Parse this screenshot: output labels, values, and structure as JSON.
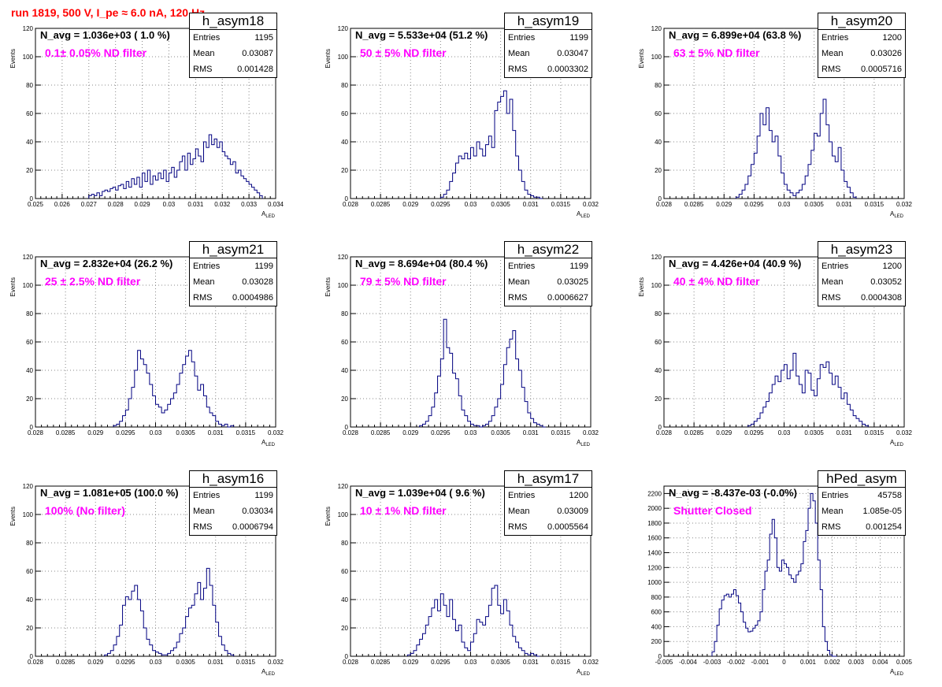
{
  "page_title": "run 1819,   500 V, I_pe ≈ 6.0 nA, 120 Hz",
  "chart_data": [
    {
      "type": "histogram",
      "name": "h_asym18",
      "n_avg": "N_avg = 1.036e+03 ( 1.0 %)",
      "filter": "0.1± 0.05% ND filter",
      "stats": {
        "entries": "1195",
        "mean": "0.03087",
        "rms": "0.001428"
      },
      "xlim": [
        0.025,
        0.034
      ],
      "ylim": [
        0,
        120
      ],
      "xticks": [
        "0.025",
        "0.026",
        "0.027",
        "0.028",
        "0.029",
        "0.03",
        "0.031",
        "0.032",
        "0.033",
        "0.034"
      ],
      "yticks": [
        "0",
        "20",
        "40",
        "60",
        "80",
        "100",
        "120"
      ],
      "xlabel": "A_LED",
      "ylabel": "Events",
      "bins": [
        0.027,
        0.0271,
        0.0272,
        0.0273,
        0.0274,
        0.0275,
        0.0276,
        0.0277,
        0.0278,
        0.0279,
        0.028,
        0.0281,
        0.0282,
        0.0283,
        0.0284,
        0.0285,
        0.0286,
        0.0287,
        0.0288,
        0.0289,
        0.029,
        0.0291,
        0.0292,
        0.0293,
        0.0294,
        0.0295,
        0.0296,
        0.0297,
        0.0298,
        0.0299,
        0.03,
        0.0301,
        0.0302,
        0.0303,
        0.0304,
        0.0305,
        0.0306,
        0.0307,
        0.0308,
        0.0309,
        0.031,
        0.0311,
        0.0312,
        0.0313,
        0.0314,
        0.0315,
        0.0316,
        0.0317,
        0.0318,
        0.0319,
        0.032,
        0.0321,
        0.0322,
        0.0323,
        0.0324,
        0.0325,
        0.0326,
        0.0327,
        0.0328,
        0.0329,
        0.033,
        0.0331,
        0.0332,
        0.0333,
        0.0334
      ],
      "values": [
        2,
        3,
        2,
        4,
        2,
        5,
        6,
        5,
        7,
        8,
        6,
        9,
        10,
        7,
        12,
        8,
        14,
        10,
        15,
        8,
        18,
        12,
        20,
        10,
        16,
        13,
        18,
        14,
        20,
        12,
        18,
        22,
        15,
        20,
        26,
        30,
        20,
        32,
        24,
        28,
        35,
        30,
        26,
        40,
        36,
        45,
        38,
        42,
        36,
        40,
        33,
        30,
        28,
        24,
        26,
        18,
        20,
        16,
        14,
        12,
        10,
        8,
        6,
        4,
        2
      ],
      "binw": 0.0001
    },
    {
      "type": "histogram",
      "name": "h_asym19",
      "n_avg": "N_avg = 5.533e+04 (51.2 %)",
      "filter": "50 ± 5% ND filter",
      "stats": {
        "entries": "1199",
        "mean": "0.03047",
        "rms": "0.0003302"
      },
      "xlim": [
        0.028,
        0.032
      ],
      "ylim": [
        0,
        120
      ],
      "xticks": [
        "0.028",
        "0.0285",
        "0.029",
        "0.0295",
        "0.03",
        "0.0305",
        "0.031",
        "0.0315",
        "0.032"
      ],
      "yticks": [
        "0",
        "20",
        "40",
        "60",
        "80",
        "100",
        "120"
      ],
      "xlabel": "A_LED",
      "ylabel": "Events",
      "bins": [
        0.0295,
        0.02955,
        0.0296,
        0.02965,
        0.0297,
        0.02975,
        0.0298,
        0.02985,
        0.0299,
        0.02995,
        0.03,
        0.03005,
        0.0301,
        0.03015,
        0.0302,
        0.03025,
        0.0303,
        0.03035,
        0.0304,
        0.03045,
        0.0305,
        0.03055,
        0.0306,
        0.03065,
        0.0307,
        0.03075,
        0.0308,
        0.03085,
        0.0309,
        0.03095,
        0.031,
        0.03105,
        0.0311,
        0.03115
      ],
      "values": [
        1,
        3,
        6,
        12,
        18,
        25,
        30,
        28,
        32,
        28,
        36,
        30,
        40,
        35,
        30,
        38,
        44,
        36,
        62,
        68,
        72,
        76,
        60,
        70,
        48,
        30,
        20,
        12,
        6,
        3,
        2,
        1,
        1,
        0
      ],
      "binw": 5e-05
    },
    {
      "type": "histogram",
      "name": "h_asym20",
      "n_avg": "N_avg = 6.899e+04 (63.8 %)",
      "filter": "63 ± 5% ND filter",
      "stats": {
        "entries": "1200",
        "mean": "0.03026",
        "rms": "0.0005716"
      },
      "xlim": [
        0.028,
        0.032
      ],
      "ylim": [
        0,
        120
      ],
      "xticks": [
        "0.028",
        "0.0285",
        "0.029",
        "0.0295",
        "0.03",
        "0.0305",
        "0.031",
        "0.0315",
        "0.032"
      ],
      "yticks": [
        "0",
        "20",
        "40",
        "60",
        "80",
        "100",
        "120"
      ],
      "xlabel": "A_LED",
      "ylabel": "Events",
      "bins": [
        0.0292,
        0.02925,
        0.0293,
        0.02935,
        0.0294,
        0.02945,
        0.0295,
        0.02955,
        0.0296,
        0.02965,
        0.0297,
        0.02975,
        0.0298,
        0.02985,
        0.0299,
        0.02995,
        0.03,
        0.03005,
        0.0301,
        0.03015,
        0.0302,
        0.03025,
        0.0303,
        0.03035,
        0.0304,
        0.03045,
        0.0305,
        0.03055,
        0.0306,
        0.03065,
        0.0307,
        0.03075,
        0.0308,
        0.03085,
        0.0309,
        0.03095,
        0.031,
        0.03105,
        0.0311,
        0.03115
      ],
      "values": [
        1,
        3,
        6,
        10,
        16,
        24,
        32,
        44,
        60,
        52,
        64,
        48,
        40,
        44,
        30,
        18,
        10,
        6,
        4,
        2,
        4,
        6,
        10,
        16,
        24,
        34,
        46,
        44,
        60,
        70,
        52,
        40,
        30,
        26,
        36,
        20,
        12,
        8,
        4,
        1
      ],
      "binw": 5e-05
    },
    {
      "type": "histogram",
      "name": "h_asym21",
      "n_avg": "N_avg = 2.832e+04 (26.2 %)",
      "filter": "25 ± 2.5% ND filter",
      "stats": {
        "entries": "1199",
        "mean": "0.03028",
        "rms": "0.0004986"
      },
      "xlim": [
        0.028,
        0.032
      ],
      "ylim": [
        0,
        120
      ],
      "xticks": [
        "0.028",
        "0.0285",
        "0.029",
        "0.0295",
        "0.03",
        "0.0305",
        "0.031",
        "0.0315",
        "0.032"
      ],
      "yticks": [
        "0",
        "20",
        "40",
        "60",
        "80",
        "100",
        "120"
      ],
      "xlabel": "A_LED",
      "ylabel": "Events",
      "bins": [
        0.0293,
        0.02935,
        0.0294,
        0.02945,
        0.0295,
        0.02955,
        0.0296,
        0.02965,
        0.0297,
        0.02975,
        0.0298,
        0.02985,
        0.0299,
        0.02995,
        0.03,
        0.03005,
        0.0301,
        0.03015,
        0.0302,
        0.03025,
        0.0303,
        0.03035,
        0.0304,
        0.03045,
        0.0305,
        0.03055,
        0.0306,
        0.03065,
        0.0307,
        0.03075,
        0.0308,
        0.03085,
        0.0309,
        0.03095,
        0.031,
        0.03105,
        0.0311,
        0.03115,
        0.0312,
        0.03125
      ],
      "values": [
        1,
        2,
        4,
        8,
        12,
        20,
        28,
        40,
        54,
        48,
        44,
        38,
        30,
        22,
        16,
        14,
        10,
        12,
        16,
        20,
        24,
        30,
        38,
        44,
        50,
        54,
        46,
        36,
        26,
        30,
        22,
        14,
        10,
        8,
        4,
        2,
        1,
        2,
        0,
        1
      ],
      "binw": 5e-05
    },
    {
      "type": "histogram",
      "name": "h_asym22",
      "n_avg": "N_avg = 8.694e+04 (80.4 %)",
      "filter": "79 ± 5% ND filter",
      "stats": {
        "entries": "1199",
        "mean": "0.03025",
        "rms": "0.0006627"
      },
      "xlim": [
        0.028,
        0.032
      ],
      "ylim": [
        0,
        120
      ],
      "xticks": [
        "0.028",
        "0.0285",
        "0.029",
        "0.0295",
        "0.03",
        "0.0305",
        "0.031",
        "0.0315",
        "0.032"
      ],
      "yticks": [
        "0",
        "20",
        "40",
        "60",
        "80",
        "100",
        "120"
      ],
      "xlabel": "A_LED",
      "ylabel": "Events",
      "bins": [
        0.02915,
        0.0292,
        0.02925,
        0.0293,
        0.02935,
        0.0294,
        0.02945,
        0.0295,
        0.02955,
        0.0296,
        0.02965,
        0.0297,
        0.02975,
        0.0298,
        0.02985,
        0.0299,
        0.02995,
        0.03,
        0.03005,
        0.0301,
        0.03015,
        0.0302,
        0.03025,
        0.0303,
        0.03035,
        0.0304,
        0.03045,
        0.0305,
        0.03055,
        0.0306,
        0.03065,
        0.0307,
        0.03075,
        0.0308,
        0.03085,
        0.0309,
        0.03095,
        0.031,
        0.03105,
        0.0311,
        0.03115,
        0.0312
      ],
      "values": [
        1,
        2,
        4,
        8,
        14,
        24,
        36,
        48,
        76,
        56,
        52,
        38,
        34,
        22,
        12,
        8,
        4,
        2,
        1,
        1,
        0,
        1,
        2,
        4,
        8,
        14,
        20,
        30,
        44,
        56,
        62,
        68,
        48,
        40,
        28,
        18,
        10,
        6,
        3,
        2,
        1,
        0
      ],
      "binw": 5e-05
    },
    {
      "type": "histogram",
      "name": "h_asym23",
      "n_avg": "N_avg = 4.426e+04 (40.9 %)",
      "filter": "40 ± 4% ND filter",
      "stats": {
        "entries": "1200",
        "mean": "0.03052",
        "rms": "0.0004308"
      },
      "xlim": [
        0.028,
        0.032
      ],
      "ylim": [
        0,
        120
      ],
      "xticks": [
        "0.028",
        "0.0285",
        "0.029",
        "0.0295",
        "0.03",
        "0.0305",
        "0.031",
        "0.0315",
        "0.032"
      ],
      "yticks": [
        "0",
        "20",
        "40",
        "60",
        "80",
        "100",
        "120"
      ],
      "xlabel": "A_LED",
      "ylabel": "Events",
      "bins": [
        0.0294,
        0.02945,
        0.0295,
        0.02955,
        0.0296,
        0.02965,
        0.0297,
        0.02975,
        0.0298,
        0.02985,
        0.0299,
        0.02995,
        0.03,
        0.03005,
        0.0301,
        0.03015,
        0.0302,
        0.03025,
        0.0303,
        0.03035,
        0.0304,
        0.03045,
        0.0305,
        0.03055,
        0.0306,
        0.03065,
        0.0307,
        0.03075,
        0.0308,
        0.03085,
        0.0309,
        0.03095,
        0.031,
        0.03105,
        0.0311,
        0.03115,
        0.0312,
        0.03125,
        0.0313,
        0.03135
      ],
      "values": [
        1,
        2,
        4,
        6,
        10,
        14,
        18,
        24,
        30,
        36,
        32,
        40,
        44,
        34,
        40,
        52,
        36,
        30,
        24,
        40,
        38,
        26,
        22,
        34,
        44,
        42,
        46,
        38,
        30,
        36,
        28,
        20,
        24,
        16,
        12,
        8,
        6,
        4,
        2,
        1
      ],
      "binw": 5e-05
    },
    {
      "type": "histogram",
      "name": "h_asym16",
      "n_avg": "N_avg = 1.081e+05 (100.0 %)",
      "filter": "100% (No filter)",
      "stats": {
        "entries": "1199",
        "mean": "0.03034",
        "rms": "0.0006794"
      },
      "xlim": [
        0.028,
        0.032
      ],
      "ylim": [
        0,
        120
      ],
      "xticks": [
        "0.028",
        "0.0285",
        "0.029",
        "0.0295",
        "0.03",
        "0.0305",
        "0.031",
        "0.0315",
        "0.032"
      ],
      "yticks": [
        "0",
        "20",
        "40",
        "60",
        "80",
        "100",
        "120"
      ],
      "xlabel": "A_LED",
      "ylabel": "Events",
      "bins": [
        0.02915,
        0.0292,
        0.02925,
        0.0293,
        0.02935,
        0.0294,
        0.02945,
        0.0295,
        0.02955,
        0.0296,
        0.02965,
        0.0297,
        0.02975,
        0.0298,
        0.02985,
        0.0299,
        0.02995,
        0.03,
        0.03005,
        0.0301,
        0.03015,
        0.0302,
        0.03025,
        0.0303,
        0.03035,
        0.0304,
        0.03045,
        0.0305,
        0.03055,
        0.0306,
        0.03065,
        0.0307,
        0.03075,
        0.0308,
        0.03085,
        0.0309,
        0.03095,
        0.031,
        0.03105,
        0.0311,
        0.03115,
        0.0312,
        0.03125
      ],
      "values": [
        1,
        2,
        4,
        8,
        14,
        22,
        36,
        42,
        40,
        46,
        50,
        40,
        32,
        20,
        12,
        8,
        4,
        3,
        2,
        1,
        1,
        2,
        4,
        6,
        10,
        16,
        20,
        28,
        34,
        36,
        44,
        52,
        40,
        48,
        62,
        50,
        36,
        24,
        14,
        8,
        4,
        2,
        1
      ],
      "binw": 5e-05
    },
    {
      "type": "histogram",
      "name": "h_asym17",
      "n_avg": "N_avg = 1.039e+04 ( 9.6 %)",
      "filter": "10 ± 1% ND filter",
      "stats": {
        "entries": "1200",
        "mean": "0.03009",
        "rms": "0.0005564"
      },
      "xlim": [
        0.028,
        0.032
      ],
      "ylim": [
        0,
        120
      ],
      "xticks": [
        "0.028",
        "0.0285",
        "0.029",
        "0.0295",
        "0.03",
        "0.0305",
        "0.031",
        "0.0315",
        "0.032"
      ],
      "yticks": [
        "0",
        "20",
        "40",
        "60",
        "80",
        "100",
        "120"
      ],
      "xlabel": "A_LED",
      "ylabel": "Events",
      "bins": [
        0.02895,
        0.029,
        0.02905,
        0.0291,
        0.02915,
        0.0292,
        0.02925,
        0.0293,
        0.02935,
        0.0294,
        0.02945,
        0.0295,
        0.02955,
        0.0296,
        0.02965,
        0.0297,
        0.02975,
        0.0298,
        0.02985,
        0.0299,
        0.02995,
        0.03,
        0.03005,
        0.0301,
        0.03015,
        0.0302,
        0.03025,
        0.0303,
        0.03035,
        0.0304,
        0.03045,
        0.0305,
        0.03055,
        0.0306,
        0.03065,
        0.0307,
        0.03075,
        0.0308,
        0.03085,
        0.0309,
        0.03095,
        0.031,
        0.03105,
        0.0311
      ],
      "values": [
        1,
        2,
        4,
        8,
        12,
        16,
        22,
        28,
        34,
        40,
        32,
        44,
        36,
        28,
        40,
        26,
        18,
        22,
        10,
        6,
        4,
        10,
        16,
        26,
        24,
        22,
        28,
        36,
        48,
        50,
        36,
        30,
        40,
        32,
        22,
        14,
        10,
        6,
        4,
        2,
        1,
        2,
        1,
        0
      ],
      "binw": 5e-05
    },
    {
      "type": "histogram",
      "name": "hPed_asym",
      "n_avg": "N_avg = -8.437e-03 (-0.0%)",
      "filter": "Shutter Closed",
      "stats": {
        "entries": "45758",
        "mean": "1.085e-05",
        "rms": "0.001254"
      },
      "xlim": [
        -0.005,
        0.005
      ],
      "ylim": [
        0,
        2300
      ],
      "xticks": [
        "-0.005",
        "-0.004",
        "-0.003",
        "-0.002",
        "-0.001",
        "0",
        "0.001",
        "0.002",
        "0.003",
        "0.004",
        "0.005"
      ],
      "yticks": [
        "0",
        "200",
        "400",
        "600",
        "800",
        "1000",
        "1200",
        "1400",
        "1600",
        "1800",
        "2000",
        "2200"
      ],
      "xlabel": "A_LED",
      "ylabel": "",
      "bins": [
        -0.003,
        -0.0029,
        -0.0028,
        -0.0027,
        -0.0026,
        -0.0025,
        -0.0024,
        -0.0023,
        -0.0022,
        -0.0021,
        -0.002,
        -0.0019,
        -0.0018,
        -0.0017,
        -0.0016,
        -0.0015,
        -0.0014,
        -0.0013,
        -0.0012,
        -0.0011,
        -0.001,
        -0.0009,
        -0.0008,
        -0.0007,
        -0.0006,
        -0.0005,
        -0.0004,
        -0.0003,
        -0.0002,
        -0.0001,
        0.0,
        0.0001,
        0.0002,
        0.0003,
        0.0004,
        0.0005,
        0.0006,
        0.0007,
        0.0008,
        0.0009,
        0.001,
        0.0011,
        0.0012,
        0.0013,
        0.0014,
        0.0015,
        0.0016,
        0.0017,
        0.0018,
        0.0019,
        0.002,
        0.0021
      ],
      "values": [
        60,
        200,
        420,
        640,
        760,
        820,
        840,
        800,
        840,
        900,
        820,
        720,
        600,
        460,
        380,
        330,
        340,
        380,
        420,
        480,
        600,
        900,
        1150,
        1300,
        1650,
        1850,
        1600,
        1200,
        1150,
        1300,
        1250,
        1200,
        1100,
        1050,
        1000,
        1100,
        1150,
        1250,
        1550,
        1700,
        2000,
        2200,
        2100,
        1800,
        1300,
        900,
        400,
        200,
        80,
        20,
        0,
        0
      ],
      "binw": 0.0001
    }
  ]
}
